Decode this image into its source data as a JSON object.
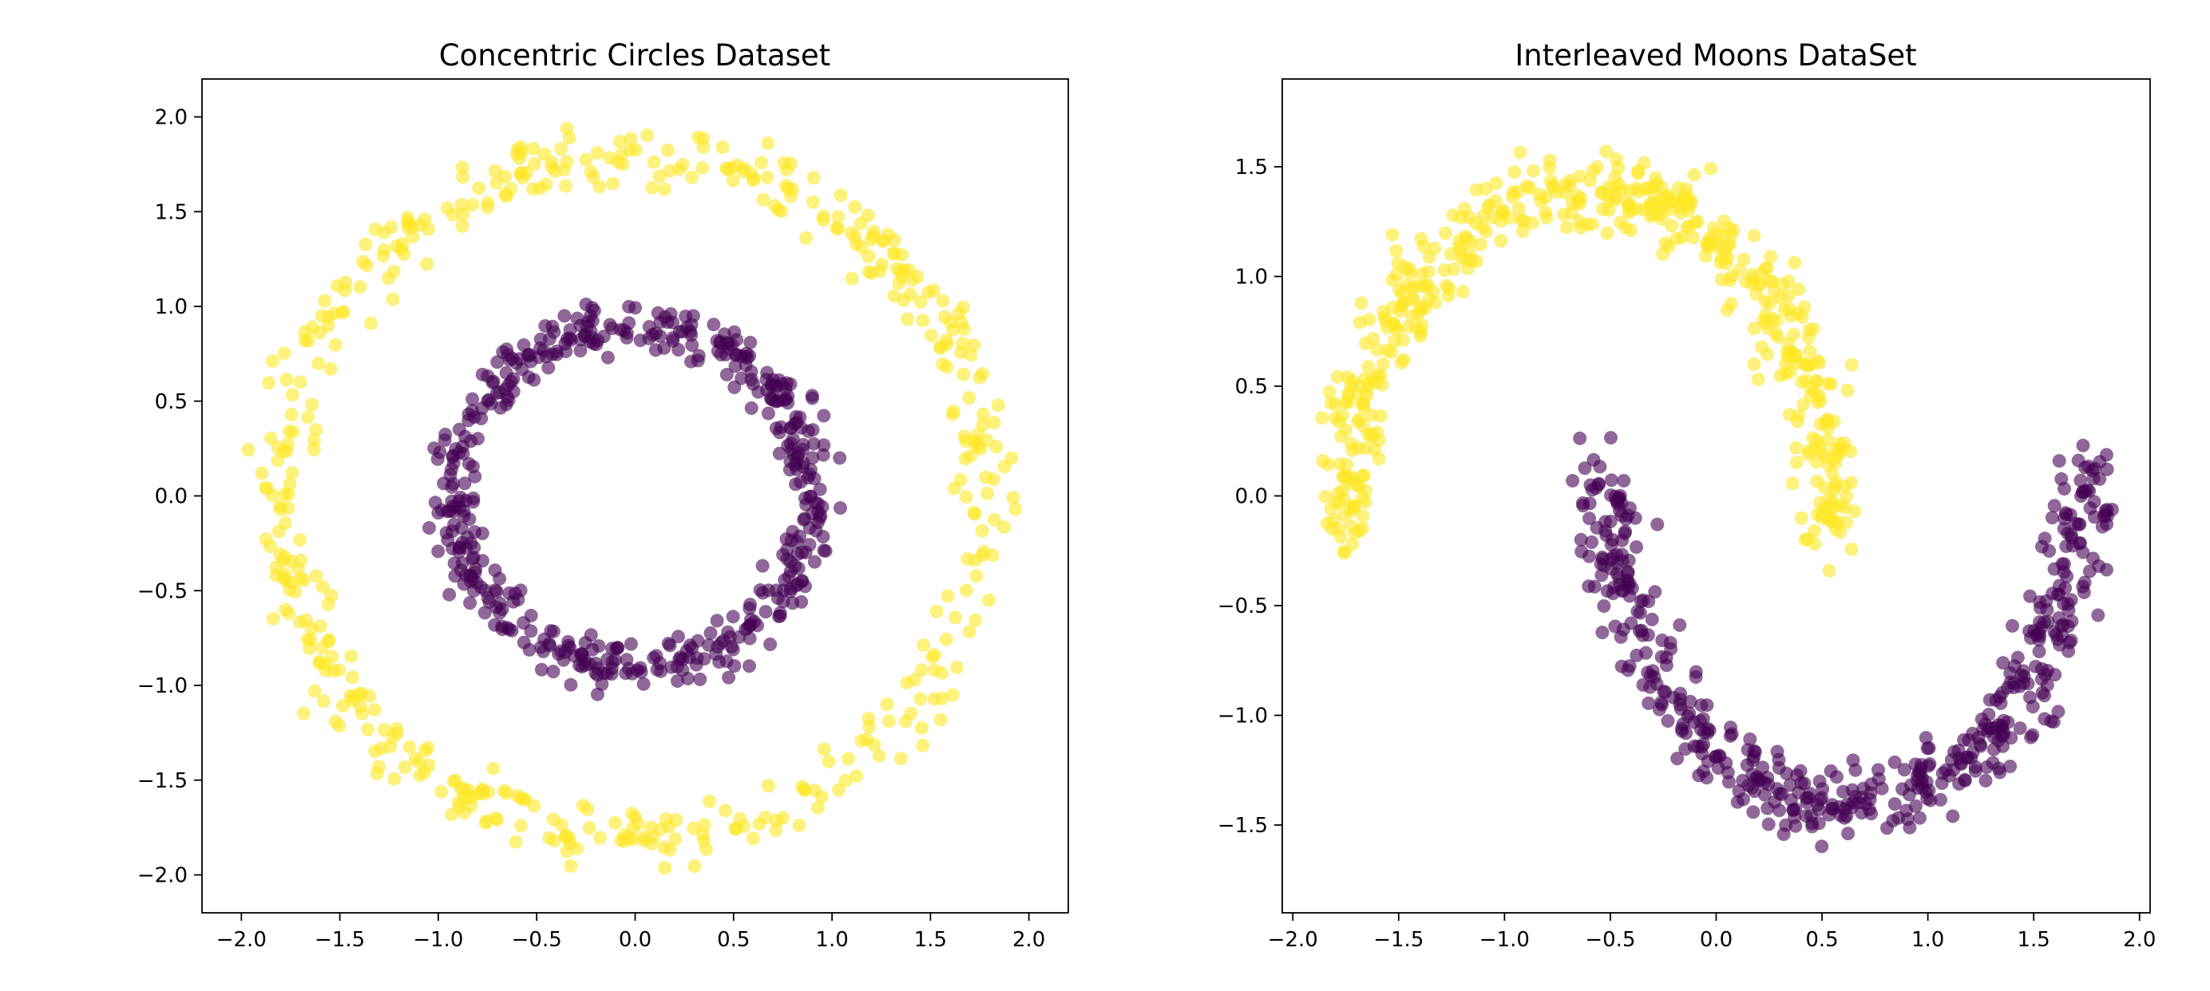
{
  "chart_data": [
    {
      "type": "scatter",
      "title": "Concentric Circles Dataset",
      "xlabel": "",
      "ylabel": "",
      "xlim": [
        -2.2,
        2.2
      ],
      "ylim": [
        -2.2,
        2.2
      ],
      "xticks": [
        -2.0,
        -1.5,
        -1.0,
        -0.5,
        0.0,
        0.5,
        1.0,
        1.5,
        2.0
      ],
      "yticks": [
        -2.0,
        -1.5,
        -1.0,
        -0.5,
        0.0,
        0.5,
        1.0,
        1.5,
        2.0
      ],
      "xtick_labels": [
        "−2.0",
        "−1.5",
        "−1.0",
        "−0.5",
        "0.0",
        "0.5",
        "1.0",
        "1.5",
        "2.0"
      ],
      "ytick_labels": [
        "−2.0",
        "−1.5",
        "−1.0",
        "−0.5",
        "0.0",
        "0.5",
        "1.0",
        "1.5",
        "2.0"
      ],
      "grid": false,
      "alpha": 0.6,
      "series": [
        {
          "color": "#fde725",
          "shape": "ring",
          "count": 500,
          "radius": 1.8,
          "noise": 0.08,
          "x_range": [
            -1.98,
            1.98
          ],
          "y_range": [
            -1.98,
            1.95
          ]
        },
        {
          "color": "#440154",
          "shape": "ring",
          "count": 500,
          "radius": 0.9,
          "noise": 0.06,
          "x_range": [
            -1.05,
            1.05
          ],
          "y_range": [
            -1.05,
            1.08
          ]
        }
      ]
    },
    {
      "type": "scatter",
      "title": "Interleaved Moons DataSet",
      "xlabel": "",
      "ylabel": "",
      "xlim": [
        -2.05,
        2.05
      ],
      "ylim": [
        -1.9,
        1.9
      ],
      "xticks": [
        -2.0,
        -1.5,
        -1.0,
        -0.5,
        0.0,
        0.5,
        1.0,
        1.5,
        2.0
      ],
      "yticks": [
        -1.5,
        -1.0,
        -0.5,
        0.0,
        0.5,
        1.0,
        1.5
      ],
      "xtick_labels": [
        "−2.0",
        "−1.5",
        "−1.0",
        "−0.5",
        "0.0",
        "0.5",
        "1.0",
        "1.5",
        "2.0"
      ],
      "ytick_labels": [
        "−1.5",
        "−1.0",
        "−0.5",
        "0.0",
        "0.5",
        "1.0",
        "1.5"
      ],
      "grid": false,
      "alpha": 0.6,
      "series": [
        {
          "color": "#fde725",
          "shape": "upper-moon",
          "count": 500,
          "center": [
            -0.6,
            -0.2
          ],
          "radius": 1.15,
          "radius_y": 1.6,
          "noise": 0.08,
          "x_range": [
            -1.88,
            0.72
          ],
          "y_range": [
            -0.62,
            1.72
          ]
        },
        {
          "color": "#440154",
          "shape": "lower-moon",
          "count": 500,
          "center": [
            0.6,
            0.2
          ],
          "radius": 1.15,
          "radius_y": 1.6,
          "noise": 0.08,
          "x_range": [
            -0.68,
            1.88
          ],
          "y_range": [
            -1.72,
            0.68
          ]
        }
      ]
    }
  ]
}
